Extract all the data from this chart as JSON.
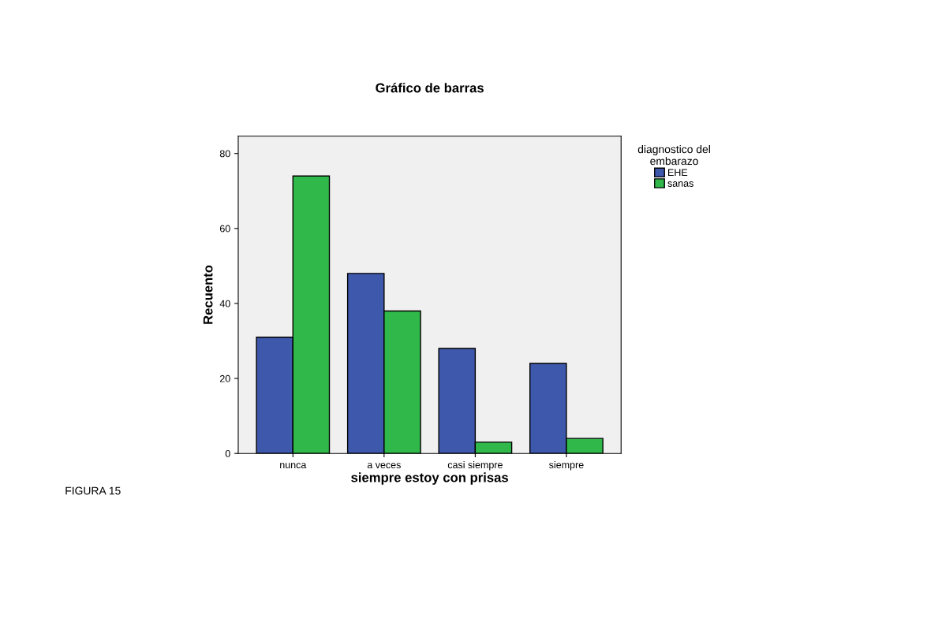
{
  "chart_data": {
    "type": "bar",
    "title": "Gráfico de barras",
    "xlabel": "siempre estoy con prisas",
    "ylabel": "Recuento",
    "legend_title": "diagnostico del\nembarazo",
    "categories": [
      "nunca",
      "a veces",
      "casi siempre",
      "siempre"
    ],
    "series": [
      {
        "name": "EHE",
        "color": "#3e58ac",
        "values": [
          31,
          48,
          28,
          24
        ]
      },
      {
        "name": "sanas",
        "color": "#30b84a",
        "values": [
          74,
          38,
          3,
          4
        ]
      }
    ],
    "ylim": [
      0,
      84.6
    ],
    "yticks": [
      0,
      20,
      40,
      60,
      80
    ],
    "grid": false,
    "legend": "top right",
    "annotations": [
      "FIGURA 15"
    ]
  }
}
